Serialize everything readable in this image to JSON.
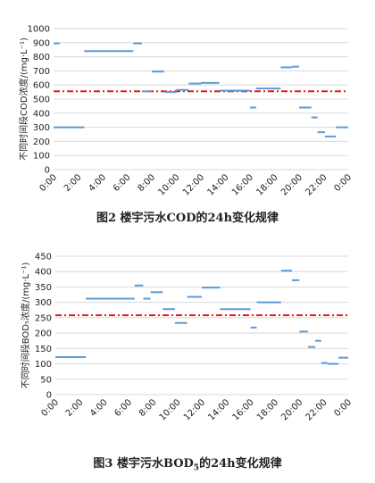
{
  "chart_data": [
    {
      "type": "line",
      "ylabel": "不同时间段COD浓度/(mg·L⁻¹)",
      "caption": "图2  楼宇污水COD的24h变化规律",
      "ylim": [
        0,
        1000
      ],
      "yticks": [
        0,
        100,
        200,
        300,
        400,
        500,
        600,
        700,
        800,
        900,
        1000
      ],
      "xlim": [
        0,
        24
      ],
      "xtick_labels": [
        "0:00",
        "2:00",
        "4:00",
        "6:00",
        "8:00",
        "10:00",
        "12:00",
        "14:00",
        "16:00",
        "18:00",
        "20:00",
        "22:00",
        "0:00"
      ],
      "reference_line": {
        "y": 555,
        "style": "dash-dot",
        "color": "#e31a1c"
      },
      "series_color": "#5b9bd5",
      "grid": "horizontal",
      "segments": [
        {
          "x0": 0.0,
          "x1": 0.5,
          "y": 895
        },
        {
          "x0": 0.0,
          "x1": 2.5,
          "y": 300
        },
        {
          "x0": 2.5,
          "x1": 6.5,
          "y": 840
        },
        {
          "x0": 6.5,
          "x1": 7.2,
          "y": 895
        },
        {
          "x0": 7.2,
          "x1": 8.0,
          "y": 555
        },
        {
          "x0": 8.0,
          "x1": 9.0,
          "y": 695
        },
        {
          "x0": 9.0,
          "x1": 10.0,
          "y": 550
        },
        {
          "x0": 10.0,
          "x1": 11.0,
          "y": 565
        },
        {
          "x0": 11.0,
          "x1": 12.0,
          "y": 610
        },
        {
          "x0": 12.0,
          "x1": 13.5,
          "y": 615
        },
        {
          "x0": 13.5,
          "x1": 15.0,
          "y": 560
        },
        {
          "x0": 15.0,
          "x1": 16.0,
          "y": 560
        },
        {
          "x0": 16.0,
          "x1": 16.5,
          "y": 440
        },
        {
          "x0": 16.5,
          "x1": 18.5,
          "y": 575
        },
        {
          "x0": 18.5,
          "x1": 19.4,
          "y": 725
        },
        {
          "x0": 19.4,
          "x1": 20.0,
          "y": 730
        },
        {
          "x0": 20.0,
          "x1": 21.0,
          "y": 440
        },
        {
          "x0": 21.0,
          "x1": 21.5,
          "y": 370
        },
        {
          "x0": 21.5,
          "x1": 22.1,
          "y": 265
        },
        {
          "x0": 22.1,
          "x1": 23.0,
          "y": 235
        },
        {
          "x0": 23.0,
          "x1": 24.0,
          "y": 300
        }
      ]
    },
    {
      "type": "line",
      "ylabel": "不同时间段BOD₅浓度/(mg·L⁻¹)",
      "caption": "图3  楼宇污水BOD5的24h变化规律",
      "ylim": [
        0,
        450
      ],
      "yticks": [
        0,
        50,
        100,
        150,
        200,
        250,
        300,
        350,
        400,
        450
      ],
      "xlim": [
        0,
        24
      ],
      "xtick_labels": [
        "0:00",
        "2:00",
        "4:00",
        "6:00",
        "8:00",
        "10:00",
        "12:00",
        "14:00",
        "16:00",
        "18:00",
        "20:00",
        "22:00",
        "0:00"
      ],
      "reference_line": {
        "y": 258,
        "style": "dash-dot",
        "color": "#e31a1c"
      },
      "series_color": "#5b9bd5",
      "grid": "horizontal",
      "segments": [
        {
          "x0": 0.0,
          "x1": 2.5,
          "y": 122
        },
        {
          "x0": 2.5,
          "x1": 6.5,
          "y": 312
        },
        {
          "x0": 6.5,
          "x1": 7.2,
          "y": 355
        },
        {
          "x0": 7.2,
          "x1": 7.8,
          "y": 312
        },
        {
          "x0": 7.8,
          "x1": 8.8,
          "y": 333
        },
        {
          "x0": 8.8,
          "x1": 9.8,
          "y": 278
        },
        {
          "x0": 9.8,
          "x1": 10.8,
          "y": 233
        },
        {
          "x0": 10.8,
          "x1": 12.0,
          "y": 318
        },
        {
          "x0": 12.0,
          "x1": 13.5,
          "y": 348
        },
        {
          "x0": 13.5,
          "x1": 16.0,
          "y": 278
        },
        {
          "x0": 16.0,
          "x1": 16.5,
          "y": 218
        },
        {
          "x0": 16.5,
          "x1": 18.5,
          "y": 300
        },
        {
          "x0": 18.5,
          "x1": 19.4,
          "y": 403
        },
        {
          "x0": 19.4,
          "x1": 20.0,
          "y": 372
        },
        {
          "x0": 20.0,
          "x1": 20.7,
          "y": 205
        },
        {
          "x0": 20.7,
          "x1": 21.3,
          "y": 155
        },
        {
          "x0": 21.3,
          "x1": 21.8,
          "y": 175
        },
        {
          "x0": 21.8,
          "x1": 22.3,
          "y": 103
        },
        {
          "x0": 22.3,
          "x1": 23.2,
          "y": 100
        },
        {
          "x0": 23.2,
          "x1": 24.0,
          "y": 120
        }
      ]
    }
  ],
  "captions": {
    "cod": {
      "prefix": "图2  楼宇污水COD的24h变化规律"
    },
    "bod": {
      "prefix": "图3  楼宇污水BOD",
      "sub": "5",
      "suffix": "的24h变化规律"
    }
  }
}
